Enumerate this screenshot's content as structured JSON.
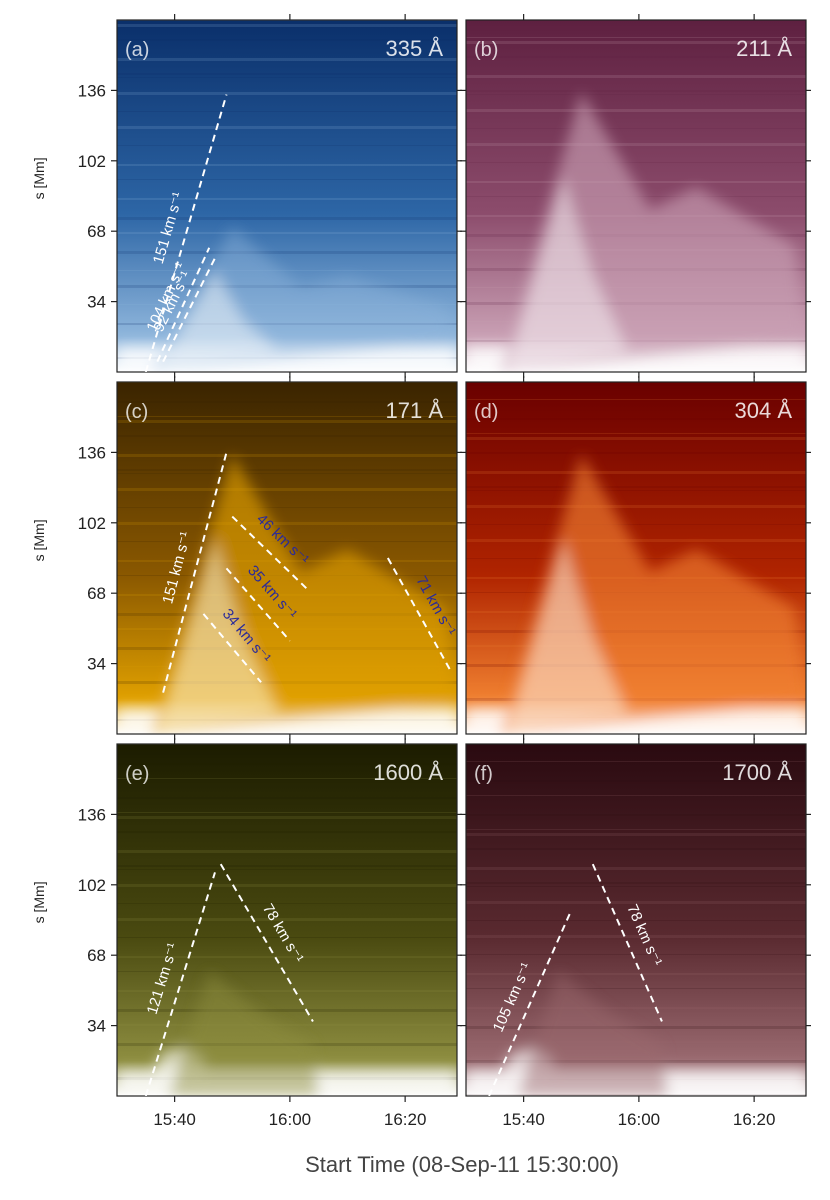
{
  "figure": {
    "x_axis_label": "Start Time (08-Sep-11 15:30:00)",
    "y_axis_label": "s [Mm]"
  },
  "chart_data": [
    {
      "type": "heatmap",
      "panel": "(a)",
      "wavelength": "335 Å",
      "colormap": [
        "#0a2f6a",
        "#2d66a6",
        "#8fb6dc",
        "#ffffff"
      ],
      "x_label": "Start Time (08-Sep-11 15:30:00)",
      "y_label": "s [Mm]",
      "xlim": [
        "15:30",
        "16:29"
      ],
      "ylim": [
        0,
        170
      ],
      "x_ticks": [
        "15:40",
        "16:00",
        "16:20"
      ],
      "y_ticks": [
        34,
        68,
        102,
        136
      ],
      "annotations": [
        {
          "text": "151 km s⁻¹",
          "x": [
            "15:35",
            "15:49"
          ],
          "y": [
            0,
            134
          ],
          "color": "#ffffff"
        },
        {
          "text": "104 km s⁻¹",
          "x": [
            "15:37",
            "15:46"
          ],
          "y": [
            5,
            60
          ],
          "color": "#ffffff"
        },
        {
          "text": "92 km s⁻¹",
          "x": [
            "15:38",
            "15:47"
          ],
          "y": [
            5,
            55
          ],
          "color": "#ffffff"
        }
      ]
    },
    {
      "type": "heatmap",
      "panel": "(b)",
      "wavelength": "211 Å",
      "colormap": [
        "#5e2040",
        "#8c4c6c",
        "#c9a0b4",
        "#ffffff"
      ],
      "x_label": "Start Time (08-Sep-11 15:30:00)",
      "y_label": "s [Mm]",
      "xlim": [
        "15:30",
        "16:29"
      ],
      "ylim": [
        0,
        170
      ],
      "x_ticks": [
        "15:40",
        "16:00",
        "16:20"
      ],
      "y_ticks": [
        34,
        68,
        102,
        136
      ],
      "annotations": []
    },
    {
      "type": "heatmap",
      "panel": "(c)",
      "wavelength": "171 Å",
      "colormap": [
        "#3a2400",
        "#8a5800",
        "#e0a000",
        "#ffffff"
      ],
      "x_label": "Start Time (08-Sep-11 15:30:00)",
      "y_label": "s [Mm]",
      "xlim": [
        "15:30",
        "16:29"
      ],
      "ylim": [
        0,
        170
      ],
      "x_ticks": [
        "15:40",
        "16:00",
        "16:20"
      ],
      "y_ticks": [
        34,
        68,
        102,
        136
      ],
      "annotations": [
        {
          "text": "151 km s⁻¹",
          "x": [
            "15:38",
            "15:49"
          ],
          "y": [
            20,
            136
          ],
          "color": "#ffffff"
        },
        {
          "text": "46 km s⁻¹",
          "x": [
            "15:50",
            "16:03"
          ],
          "y": [
            105,
            70
          ],
          "color": "#2a2a9a"
        },
        {
          "text": "35 km s⁻¹",
          "x": [
            "15:49",
            "16:00"
          ],
          "y": [
            80,
            45
          ],
          "color": "#2a2a9a"
        },
        {
          "text": "34 km s⁻¹",
          "x": [
            "15:45",
            "15:55"
          ],
          "y": [
            58,
            25
          ],
          "color": "#2a2a9a"
        },
        {
          "text": "71 km s⁻¹",
          "x": [
            "16:17",
            "16:28"
          ],
          "y": [
            85,
            30
          ],
          "color": "#2a2a9a"
        }
      ]
    },
    {
      "type": "heatmap",
      "panel": "(d)",
      "wavelength": "304 Å",
      "colormap": [
        "#6a0000",
        "#b02400",
        "#f08030",
        "#ffffff"
      ],
      "x_label": "Start Time (08-Sep-11 15:30:00)",
      "y_label": "s [Mm]",
      "xlim": [
        "15:30",
        "16:29"
      ],
      "ylim": [
        0,
        170
      ],
      "x_ticks": [
        "15:40",
        "16:00",
        "16:20"
      ],
      "y_ticks": [
        34,
        68,
        102,
        136
      ],
      "annotations": []
    },
    {
      "type": "heatmap",
      "panel": "(e)",
      "wavelength": "1600 Å",
      "colormap": [
        "#1c1c00",
        "#4a4a10",
        "#8e8e40",
        "#ffffff"
      ],
      "x_label": "Start Time (08-Sep-11 15:30:00)",
      "y_label": "s [Mm]",
      "xlim": [
        "15:30",
        "16:29"
      ],
      "ylim": [
        0,
        170
      ],
      "x_ticks": [
        "15:40",
        "16:00",
        "16:20"
      ],
      "y_ticks": [
        34,
        68,
        102,
        136
      ],
      "annotations": [
        {
          "text": "121 km s⁻¹",
          "x": [
            "15:35",
            "15:47"
          ],
          "y": [
            0,
            108
          ],
          "color": "#ffffff"
        },
        {
          "text": "78 km s⁻¹",
          "x": [
            "15:48",
            "16:04"
          ],
          "y": [
            112,
            36
          ],
          "color": "#ffffff"
        }
      ]
    },
    {
      "type": "heatmap",
      "panel": "(f)",
      "wavelength": "1700 Å",
      "colormap": [
        "#2a0a10",
        "#5a2a30",
        "#9a6a70",
        "#ffffff"
      ],
      "x_label": "Start Time (08-Sep-11 15:30:00)",
      "y_label": "s [Mm]",
      "xlim": [
        "15:30",
        "16:29"
      ],
      "ylim": [
        0,
        170
      ],
      "x_ticks": [
        "15:40",
        "16:00",
        "16:20"
      ],
      "y_ticks": [
        34,
        68,
        102,
        136
      ],
      "annotations": [
        {
          "text": "105 km s⁻¹",
          "x": [
            "15:34",
            "15:48"
          ],
          "y": [
            0,
            88
          ],
          "color": "#ffffff"
        },
        {
          "text": "78 km s⁻¹",
          "x": [
            "15:52",
            "16:04"
          ],
          "y": [
            112,
            36
          ],
          "color": "#ffffff"
        }
      ]
    }
  ]
}
